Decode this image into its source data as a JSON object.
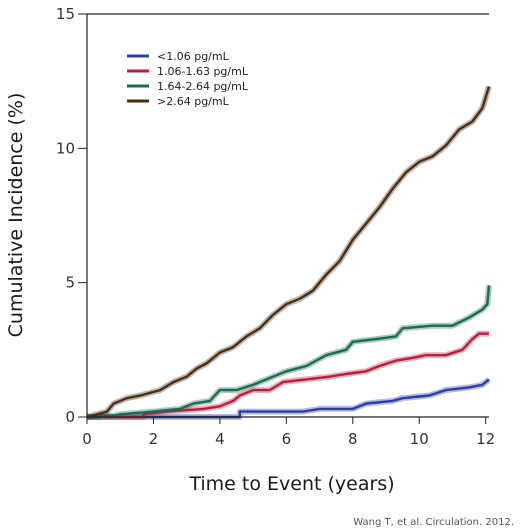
{
  "chart_data": {
    "type": "line",
    "title": "",
    "xlabel": "Time to Event (years)",
    "ylabel": "Cumulative Incidence (%)",
    "xlim": [
      0,
      12.1
    ],
    "ylim": [
      0,
      15
    ],
    "x_ticks": [
      0,
      2,
      4,
      6,
      8,
      10,
      12
    ],
    "y_ticks": [
      0,
      5,
      10,
      15
    ],
    "grid": false,
    "legend_position": "top-left",
    "series": [
      {
        "name": "<1.06 pg/mL",
        "color": "#2e3f9c",
        "points": [
          [
            0,
            0
          ],
          [
            4.6,
            0
          ],
          [
            4.6,
            0.2
          ],
          [
            6.5,
            0.2
          ],
          [
            7.0,
            0.3
          ],
          [
            8.0,
            0.3
          ],
          [
            8.4,
            0.5
          ],
          [
            9.2,
            0.6
          ],
          [
            9.5,
            0.7
          ],
          [
            10.3,
            0.8
          ],
          [
            10.8,
            1.0
          ],
          [
            11.5,
            1.1
          ],
          [
            11.9,
            1.2
          ],
          [
            12.1,
            1.4
          ]
        ]
      },
      {
        "name": "1.06-1.63 pg/mL",
        "color": "#b02443",
        "points": [
          [
            0,
            0
          ],
          [
            1.7,
            0
          ],
          [
            1.7,
            0.1
          ],
          [
            2.4,
            0.2
          ],
          [
            3.5,
            0.3
          ],
          [
            4.0,
            0.4
          ],
          [
            4.4,
            0.6
          ],
          [
            4.6,
            0.8
          ],
          [
            5.0,
            1.0
          ],
          [
            5.5,
            1.0
          ],
          [
            5.9,
            1.3
          ],
          [
            6.6,
            1.4
          ],
          [
            7.3,
            1.5
          ],
          [
            7.8,
            1.6
          ],
          [
            8.4,
            1.7
          ],
          [
            8.8,
            1.9
          ],
          [
            9.3,
            2.1
          ],
          [
            9.8,
            2.2
          ],
          [
            10.2,
            2.3
          ],
          [
            10.8,
            2.3
          ],
          [
            11.3,
            2.5
          ],
          [
            11.6,
            2.9
          ],
          [
            11.8,
            3.1
          ],
          [
            12.1,
            3.1
          ]
        ]
      },
      {
        "name": "1.64-2.64 pg/mL",
        "color": "#1e6a52",
        "points": [
          [
            0,
            0
          ],
          [
            0.4,
            0
          ],
          [
            0.4,
            0.05
          ],
          [
            0.8,
            0.05
          ],
          [
            1.0,
            0.1
          ],
          [
            2.0,
            0.2
          ],
          [
            2.8,
            0.3
          ],
          [
            3.2,
            0.5
          ],
          [
            3.7,
            0.6
          ],
          [
            4.0,
            1.0
          ],
          [
            4.5,
            1.0
          ],
          [
            5.0,
            1.2
          ],
          [
            5.6,
            1.5
          ],
          [
            6.0,
            1.7
          ],
          [
            6.6,
            1.9
          ],
          [
            7.2,
            2.3
          ],
          [
            7.8,
            2.5
          ],
          [
            8.0,
            2.8
          ],
          [
            8.7,
            2.9
          ],
          [
            9.3,
            3.0
          ],
          [
            9.5,
            3.3
          ],
          [
            10.4,
            3.4
          ],
          [
            11.0,
            3.4
          ],
          [
            11.5,
            3.7
          ],
          [
            11.9,
            4.0
          ],
          [
            12.05,
            4.2
          ],
          [
            12.1,
            4.9
          ]
        ]
      },
      {
        "name": ">2.64 pg/mL",
        "color": "#4a2e15",
        "points": [
          [
            0,
            0
          ],
          [
            0.3,
            0.1
          ],
          [
            0.6,
            0.2
          ],
          [
            0.8,
            0.5
          ],
          [
            1.2,
            0.7
          ],
          [
            1.6,
            0.8
          ],
          [
            2.2,
            1.0
          ],
          [
            2.6,
            1.3
          ],
          [
            3.0,
            1.5
          ],
          [
            3.3,
            1.8
          ],
          [
            3.6,
            2.0
          ],
          [
            4.0,
            2.4
          ],
          [
            4.4,
            2.6
          ],
          [
            4.8,
            3.0
          ],
          [
            5.2,
            3.3
          ],
          [
            5.6,
            3.8
          ],
          [
            6.0,
            4.2
          ],
          [
            6.4,
            4.4
          ],
          [
            6.8,
            4.7
          ],
          [
            7.2,
            5.3
          ],
          [
            7.6,
            5.8
          ],
          [
            8.0,
            6.6
          ],
          [
            8.4,
            7.2
          ],
          [
            8.8,
            7.8
          ],
          [
            9.2,
            8.5
          ],
          [
            9.6,
            9.1
          ],
          [
            10.0,
            9.5
          ],
          [
            10.4,
            9.7
          ],
          [
            10.8,
            10.1
          ],
          [
            11.2,
            10.7
          ],
          [
            11.6,
            11.0
          ],
          [
            11.9,
            11.5
          ],
          [
            12.1,
            12.3
          ]
        ]
      }
    ]
  },
  "credit": "Wang T, et al. Circulation. 2012."
}
